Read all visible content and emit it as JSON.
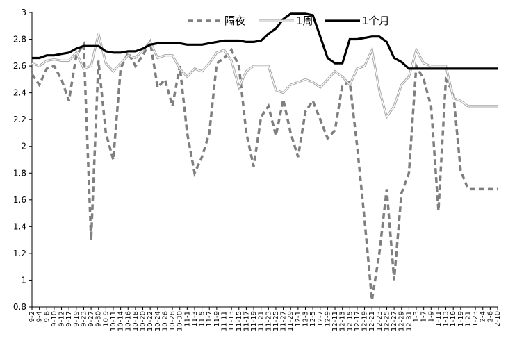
{
  "chart_data": {
    "type": "line",
    "ylim": [
      0.8,
      3.0
    ],
    "yticks": [
      "0.8",
      "1",
      "1.2",
      "1.4",
      "1.6",
      "1.8",
      "2",
      "2.2",
      "2.4",
      "2.6",
      "2.8",
      "3"
    ],
    "grid": false,
    "legend_position": "top",
    "x": [
      "9-2",
      "9-4",
      "9-6",
      "9-10",
      "9-12",
      "9-17",
      "9-19",
      "9-23",
      "9-27",
      "9-30",
      "10-9",
      "10-11",
      "10-14",
      "10-16",
      "10-18",
      "10-20",
      "10-22",
      "10-24",
      "10-26",
      "10-28",
      "10-30",
      "11-1",
      "11-3",
      "11-5",
      "11-7",
      "11-9",
      "11-11",
      "11-13",
      "11-15",
      "11-17",
      "11-19",
      "11-21",
      "11-23",
      "11-25",
      "11-27",
      "11-29",
      "12-1",
      "12-3",
      "12-5",
      "12-7",
      "12-9",
      "12-11",
      "12-13",
      "12-15",
      "12-17",
      "12-19",
      "12-21",
      "12-23",
      "12-25",
      "12-27",
      "12-29",
      "12-31",
      "1-3",
      "1-7",
      "1-9",
      "1-11",
      "1-13",
      "1-16",
      "1-19",
      "1-21",
      "1-23",
      "2-4",
      "2-6",
      "2-10"
    ],
    "series": [
      {
        "name": "隔夜",
        "color": "#7f7f7f",
        "style": "dashed",
        "values": [
          2.54,
          2.46,
          2.58,
          2.6,
          2.5,
          2.34,
          2.68,
          2.76,
          1.3,
          2.64,
          2.1,
          1.9,
          2.58,
          2.7,
          2.6,
          2.68,
          2.78,
          2.44,
          2.5,
          2.3,
          2.6,
          2.1,
          1.8,
          1.92,
          2.1,
          2.62,
          2.66,
          2.72,
          2.6,
          2.1,
          1.85,
          2.22,
          2.3,
          2.08,
          2.35,
          2.1,
          1.92,
          2.26,
          2.34,
          2.2,
          2.06,
          2.12,
          2.46,
          2.48,
          2.0,
          1.45,
          0.85,
          1.2,
          1.68,
          1.0,
          1.65,
          1.8,
          2.6,
          2.5,
          2.3,
          1.52,
          2.5,
          2.4,
          1.82,
          1.68,
          1.68,
          1.68,
          1.68,
          1.68
        ]
      },
      {
        "name": "1周",
        "color": "#a6a6a6",
        "style": "hollow",
        "values": [
          2.62,
          2.6,
          2.64,
          2.65,
          2.64,
          2.64,
          2.7,
          2.58,
          2.6,
          2.84,
          2.62,
          2.56,
          2.62,
          2.68,
          2.66,
          2.72,
          2.78,
          2.66,
          2.68,
          2.68,
          2.58,
          2.52,
          2.58,
          2.56,
          2.62,
          2.7,
          2.72,
          2.64,
          2.44,
          2.56,
          2.6,
          2.6,
          2.6,
          2.42,
          2.4,
          2.46,
          2.48,
          2.5,
          2.48,
          2.44,
          2.5,
          2.56,
          2.52,
          2.46,
          2.58,
          2.6,
          2.72,
          2.42,
          2.22,
          2.3,
          2.46,
          2.52,
          2.72,
          2.62,
          2.6,
          2.6,
          2.6,
          2.36,
          2.34,
          2.3,
          2.3,
          2.3,
          2.3,
          2.3
        ]
      },
      {
        "name": "1个月",
        "color": "#000000",
        "style": "solid",
        "values": [
          2.66,
          2.66,
          2.68,
          2.68,
          2.69,
          2.7,
          2.73,
          2.75,
          2.75,
          2.75,
          2.71,
          2.7,
          2.7,
          2.71,
          2.71,
          2.73,
          2.76,
          2.77,
          2.77,
          2.77,
          2.77,
          2.76,
          2.76,
          2.76,
          2.77,
          2.78,
          2.79,
          2.79,
          2.79,
          2.78,
          2.78,
          2.79,
          2.84,
          2.88,
          2.95,
          2.99,
          2.99,
          2.99,
          2.98,
          2.82,
          2.66,
          2.62,
          2.62,
          2.8,
          2.8,
          2.81,
          2.82,
          2.82,
          2.78,
          2.66,
          2.63,
          2.58,
          2.58,
          2.58,
          2.58,
          2.58,
          2.58,
          2.58,
          2.58,
          2.58,
          2.58,
          2.58,
          2.58,
          2.58
        ]
      }
    ]
  }
}
